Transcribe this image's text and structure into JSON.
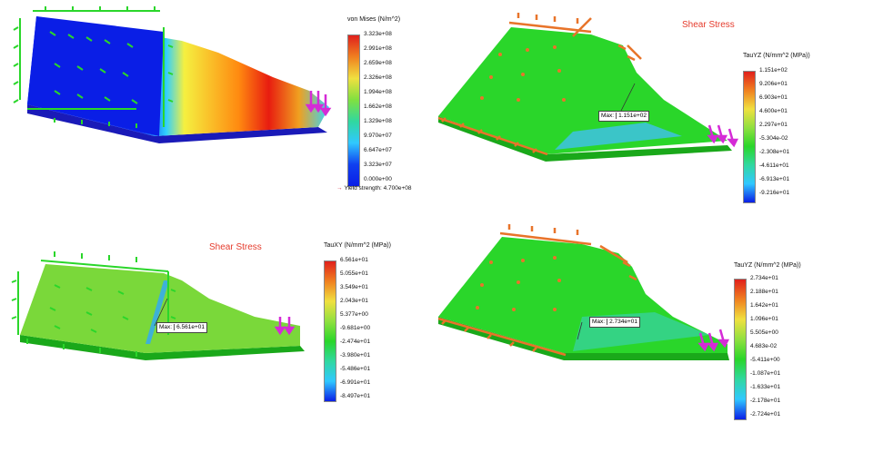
{
  "panels": [
    {
      "title": "",
      "legend_title": "von Mises (N/m^2)",
      "ticks": [
        "3.323e+08",
        "2.991e+08",
        "2.659e+08",
        "2.326e+08",
        "1.994e+08",
        "1.662e+08",
        "1.329e+08",
        "9.970e+07",
        "6.647e+07",
        "3.323e+07",
        "0.000e+00"
      ],
      "yield_label": "Yield strength: 4.700e+08",
      "max_label": "",
      "max_value": ""
    },
    {
      "title": "Shear Stress",
      "legend_title": "TauYZ (N/mm^2 (MPa))",
      "ticks": [
        "1.151e+02",
        "9.206e+01",
        "6.903e+01",
        "4.600e+01",
        "2.297e+01",
        "-5.304e-02",
        "-2.308e+01",
        "-4.611e+01",
        "-6.913e+01",
        "-9.216e+01"
      ],
      "yield_label": "",
      "max_label": "Max:",
      "max_value": "1.151e+02"
    },
    {
      "title": "Shear Stress",
      "legend_title": "TauXY (N/mm^2 (MPa))",
      "ticks": [
        "6.561e+01",
        "5.055e+01",
        "3.549e+01",
        "2.043e+01",
        "5.377e+00",
        "-9.681e+00",
        "-2.474e+01",
        "-3.980e+01",
        "-5.486e+01",
        "-6.991e+01",
        "-8.497e+01"
      ],
      "yield_label": "",
      "max_label": "Max:",
      "max_value": "6.561e+01"
    },
    {
      "title": "",
      "legend_title": "TauYZ (N/mm^2 (MPa))",
      "ticks": [
        "2.734e+01",
        "2.188e+01",
        "1.642e+01",
        "1.096e+01",
        "5.505e+00",
        "4.683e-02",
        "-5.411e+00",
        "-1.087e+01",
        "-1.633e+01",
        "-2.178e+01",
        "-2.724e+01"
      ],
      "yield_label": "",
      "max_label": "Max:",
      "max_value": "2.734e+01"
    }
  ],
  "colors": {
    "blue": "#0a1ee6",
    "green": "#2ad62a",
    "orange": "#e8742a",
    "magenta": "#d52bd6",
    "red": "#e0201c",
    "title_red": "#e53b2c"
  }
}
